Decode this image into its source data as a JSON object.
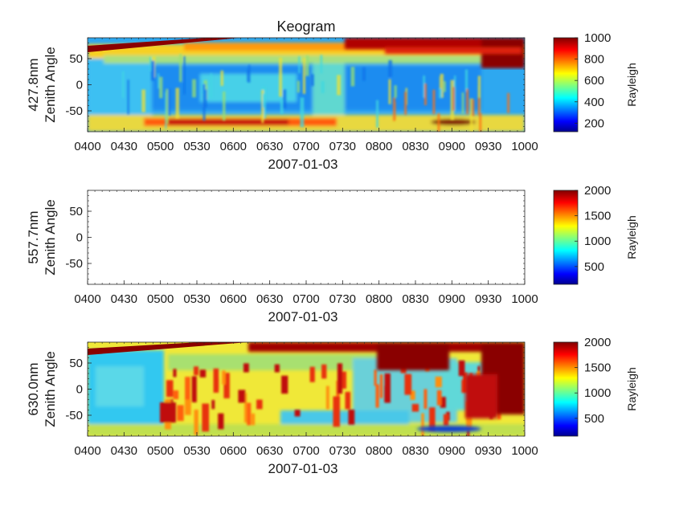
{
  "figure_title": "Keogram",
  "chart_data": [
    {
      "type": "heatmap",
      "title": "Keogram",
      "ylabel_line1": "427.8nm",
      "ylabel_line2": "Zenith Angle",
      "xlabel": "2007-01-03",
      "x_ticks": [
        "0400",
        "0430",
        "0500",
        "0530",
        "0600",
        "0630",
        "0700",
        "0730",
        "0800",
        "0830",
        "0900",
        "0930",
        "1000"
      ],
      "y_ticks": [
        "50",
        "0",
        "-50"
      ],
      "ylim": [
        -90,
        90
      ],
      "colorbar": {
        "label": "Rayleigh",
        "min": 120,
        "max": 1000,
        "ticks": [
          "1000",
          "800",
          "600",
          "400",
          "200"
        ],
        "tick_values": [
          1000,
          800,
          600,
          400,
          200
        ]
      },
      "has_data": true
    },
    {
      "type": "heatmap",
      "title": "",
      "ylabel_line1": "557.7nm",
      "ylabel_line2": "Zenith Angle",
      "xlabel": "2007-01-03",
      "x_ticks": [
        "0400",
        "0430",
        "0500",
        "0530",
        "0600",
        "0630",
        "0700",
        "0730",
        "0800",
        "0830",
        "0900",
        "0930",
        "1000"
      ],
      "y_ticks": [
        "50",
        "0",
        "-50"
      ],
      "ylim": [
        -90,
        90
      ],
      "colorbar": {
        "label": "Rayleigh",
        "min": 150,
        "max": 2000,
        "ticks": [
          "2000",
          "1500",
          "1000",
          "500"
        ],
        "tick_values": [
          2000,
          1500,
          1000,
          500
        ]
      },
      "has_data": false
    },
    {
      "type": "heatmap",
      "title": "",
      "ylabel_line1": "630.0nm",
      "ylabel_line2": "Zenith Angle",
      "xlabel": "2007-01-03",
      "x_ticks": [
        "0400",
        "0430",
        "0500",
        "0530",
        "0600",
        "0630",
        "0700",
        "0730",
        "0800",
        "0830",
        "0900",
        "0930",
        "1000"
      ],
      "y_ticks": [
        "50",
        "0",
        "-50"
      ],
      "ylim": [
        -90,
        90
      ],
      "colorbar": {
        "label": "Rayleigh",
        "min": 150,
        "max": 2000,
        "ticks": [
          "2000",
          "1500",
          "1000",
          "500"
        ],
        "tick_values": [
          2000,
          1500,
          1000,
          500
        ]
      },
      "has_data": true
    }
  ]
}
